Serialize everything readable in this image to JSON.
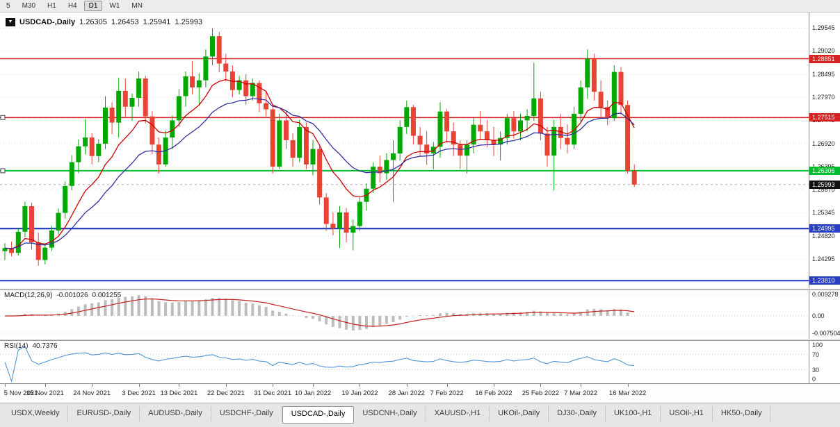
{
  "toolbar": {
    "timeframes": [
      "5",
      "M30",
      "H1",
      "H4",
      "D1",
      "W1",
      "MN"
    ],
    "active": "D1"
  },
  "main_chart": {
    "symbol_label": "USDCAD-,Daily",
    "open": "1.26305",
    "high": "1.26453",
    "low": "1.25941",
    "close": "1.25993"
  },
  "macd_panel": {
    "title": "MACD(12,26,9)",
    "value": "-0.001026",
    "signal_value": "0.001255",
    "axis_labels": [
      "0.009278",
      "0.00",
      "-0.007504"
    ]
  },
  "rsi_panel": {
    "title": "RSI(14)",
    "value": "40.7376",
    "axis_labels": [
      "100",
      "70",
      "30",
      "0"
    ],
    "level_values": [
      100,
      70,
      30,
      0
    ]
  },
  "tabbar": {
    "tabs": [
      "USDX,Weekly",
      "EURUSD-,Daily",
      "AUDUSD-,Daily",
      "USDCHF-,Daily",
      "USDCAD-,Daily",
      "USDCNH-,Daily",
      "XAUUSD-,H1",
      "UKOil-,Daily",
      "DJ30-,Daily",
      "UK100-,H1",
      "USOil-,H1",
      "HK50-,Daily"
    ],
    "active": "USDCAD-,Daily"
  },
  "colors": {
    "up": "#00a800",
    "down": "#e84335",
    "ma_fast": "#cc0000",
    "ma_slow": "#3030a0",
    "macd_hist": "#bdbdbd",
    "macd_signal": "#c41d1d",
    "rsi_line": "#4f94d4",
    "grid": "#d9d9d9"
  },
  "chart_data": {
    "type": "candlestick",
    "symbol": "USDCAD-",
    "period": "Daily",
    "price_range": {
      "max": 1.299,
      "min": 1.2364
    },
    "price_axis_ticks": [
      "1.29545",
      "1.29020",
      "1.28495",
      "1.27970",
      "1.27445",
      "1.26920",
      "1.26395",
      "1.25870",
      "1.25345",
      "1.24820",
      "1.24295",
      "1.23770"
    ],
    "levels": [
      {
        "price": 1.28851,
        "label": "1.28851",
        "color": "#d62222",
        "width": 1.6,
        "handle": false
      },
      {
        "price": 1.27515,
        "label": "1.27515",
        "color": "#d62222",
        "width": 1.6,
        "handle": true
      },
      {
        "price": 1.26306,
        "label": "1.26306",
        "color": "#00bd2f",
        "width": 2.0,
        "handle": true
      },
      {
        "price": 1.24995,
        "label": "1.24995",
        "color": "#2840c0",
        "width": 2.2,
        "handle": false
      },
      {
        "price": 1.2381,
        "label": "1.23810",
        "color": "#2840c0",
        "width": 2.2,
        "handle": false
      }
    ],
    "current_price": {
      "value": 1.25993,
      "label": "1.25993"
    },
    "x_labels": [
      {
        "label": "5 Nov 2021",
        "i": 0
      },
      {
        "label": "15 Nov 2021",
        "i": 6
      },
      {
        "label": "24 Nov 2021",
        "i": 13
      },
      {
        "label": "3 Dec 2021",
        "i": 20
      },
      {
        "label": "13 Dec 2021",
        "i": 26
      },
      {
        "label": "22 Dec 2021",
        "i": 33
      },
      {
        "label": "31 Dec 2021",
        "i": 40
      },
      {
        "label": "10 Jan 2022",
        "i": 46
      },
      {
        "label": "19 Jan 2022",
        "i": 53
      },
      {
        "label": "28 Jan 2022",
        "i": 60
      },
      {
        "label": "7 Feb 2022",
        "i": 66
      },
      {
        "label": "16 Feb 2022",
        "i": 73
      },
      {
        "label": "25 Feb 2022",
        "i": 80
      },
      {
        "label": "7 Mar 2022",
        "i": 86
      },
      {
        "label": "16 Mar 2022",
        "i": 93
      }
    ],
    "moving_averages": [
      {
        "type": "ema",
        "period": 10,
        "color": "#cc0000"
      },
      {
        "type": "ema",
        "period": 20,
        "color": "#3030a0"
      }
    ],
    "macd_params": {
      "fast": 12,
      "slow": 26,
      "signal": 9
    },
    "rsi_period": 14,
    "candles": [
      [
        1.2448,
        1.2466,
        1.2428,
        1.2455
      ],
      [
        1.2455,
        1.247,
        1.2436,
        1.2444
      ],
      [
        1.2444,
        1.25,
        1.2438,
        1.2492
      ],
      [
        1.2492,
        1.256,
        1.248,
        1.255
      ],
      [
        1.255,
        1.2558,
        1.2452,
        1.2468
      ],
      [
        1.2468,
        1.249,
        1.2415,
        1.2428
      ],
      [
        1.2428,
        1.2465,
        1.2418,
        1.2456
      ],
      [
        1.2456,
        1.2505,
        1.2448,
        1.2495
      ],
      [
        1.2495,
        1.2545,
        1.2486,
        1.2535
      ],
      [
        1.2535,
        1.2606,
        1.2522,
        1.2596
      ],
      [
        1.2596,
        1.2666,
        1.2586,
        1.265
      ],
      [
        1.265,
        1.2702,
        1.2625,
        1.2686
      ],
      [
        1.2686,
        1.2748,
        1.2668,
        1.2706
      ],
      [
        1.2706,
        1.2716,
        1.2645,
        1.2664
      ],
      [
        1.2664,
        1.2702,
        1.265,
        1.2692
      ],
      [
        1.2692,
        1.28,
        1.268,
        1.2774
      ],
      [
        1.2774,
        1.2786,
        1.2714,
        1.274
      ],
      [
        1.274,
        1.2842,
        1.2706,
        1.2812
      ],
      [
        1.2812,
        1.284,
        1.2754,
        1.2776
      ],
      [
        1.2776,
        1.2806,
        1.2744,
        1.2796
      ],
      [
        1.2796,
        1.2856,
        1.2776,
        1.284
      ],
      [
        1.284,
        1.2846,
        1.2738,
        1.2754
      ],
      [
        1.2754,
        1.2766,
        1.2668,
        1.269
      ],
      [
        1.269,
        1.2706,
        1.2624,
        1.2645
      ],
      [
        1.2645,
        1.2722,
        1.264,
        1.2706
      ],
      [
        1.2706,
        1.2756,
        1.268,
        1.2745
      ],
      [
        1.2745,
        1.2816,
        1.273,
        1.28
      ],
      [
        1.28,
        1.2856,
        1.2776,
        1.2845
      ],
      [
        1.2845,
        1.288,
        1.2804,
        1.282
      ],
      [
        1.282,
        1.2852,
        1.278,
        1.2836
      ],
      [
        1.2836,
        1.2906,
        1.282,
        1.289
      ],
      [
        1.289,
        1.2954,
        1.287,
        1.2936
      ],
      [
        1.2936,
        1.2946,
        1.2854,
        1.2874
      ],
      [
        1.2874,
        1.2896,
        1.2834,
        1.2856
      ],
      [
        1.2856,
        1.287,
        1.2798,
        1.2814
      ],
      [
        1.2814,
        1.2846,
        1.2804,
        1.2836
      ],
      [
        1.2836,
        1.285,
        1.278,
        1.28
      ],
      [
        1.28,
        1.284,
        1.279,
        1.283
      ],
      [
        1.283,
        1.2836,
        1.2764,
        1.2784
      ],
      [
        1.2784,
        1.281,
        1.2754,
        1.277
      ],
      [
        1.277,
        1.2776,
        1.2624,
        1.264
      ],
      [
        1.264,
        1.276,
        1.2634,
        1.2745
      ],
      [
        1.2745,
        1.2766,
        1.268,
        1.27
      ],
      [
        1.27,
        1.2716,
        1.264,
        1.266
      ],
      [
        1.266,
        1.2746,
        1.265,
        1.273
      ],
      [
        1.273,
        1.274,
        1.2634,
        1.2645
      ],
      [
        1.2645,
        1.27,
        1.262,
        1.268
      ],
      [
        1.268,
        1.2686,
        1.2554,
        1.257
      ],
      [
        1.257,
        1.258,
        1.2494,
        1.251
      ],
      [
        1.251,
        1.2536,
        1.2484,
        1.25
      ],
      [
        1.25,
        1.255,
        1.2455,
        1.2536
      ],
      [
        1.2536,
        1.2546,
        1.2468,
        1.249
      ],
      [
        1.249,
        1.252,
        1.245,
        1.2505
      ],
      [
        1.2505,
        1.257,
        1.2494,
        1.256
      ],
      [
        1.256,
        1.2602,
        1.254,
        1.259
      ],
      [
        1.259,
        1.265,
        1.258,
        1.264
      ],
      [
        1.264,
        1.2665,
        1.2604,
        1.2625
      ],
      [
        1.2625,
        1.267,
        1.261,
        1.2655
      ],
      [
        1.2655,
        1.27,
        1.256,
        1.267
      ],
      [
        1.267,
        1.2745,
        1.2654,
        1.273
      ],
      [
        1.273,
        1.279,
        1.2714,
        1.2775
      ],
      [
        1.2775,
        1.278,
        1.269,
        1.271
      ],
      [
        1.271,
        1.273,
        1.2664,
        1.269
      ],
      [
        1.269,
        1.272,
        1.2644,
        1.267
      ],
      [
        1.267,
        1.2696,
        1.2634,
        1.2685
      ],
      [
        1.2685,
        1.2786,
        1.266,
        1.2765
      ],
      [
        1.2765,
        1.277,
        1.2694,
        1.272
      ],
      [
        1.272,
        1.274,
        1.2664,
        1.269
      ],
      [
        1.269,
        1.27,
        1.2634,
        1.2665
      ],
      [
        1.2665,
        1.27,
        1.2624,
        1.269
      ],
      [
        1.269,
        1.275,
        1.267,
        1.2735
      ],
      [
        1.2735,
        1.2766,
        1.27,
        1.272
      ],
      [
        1.272,
        1.2746,
        1.2684,
        1.27
      ],
      [
        1.27,
        1.273,
        1.2664,
        1.269
      ],
      [
        1.269,
        1.272,
        1.2654,
        1.2705
      ],
      [
        1.2705,
        1.276,
        1.269,
        1.275
      ],
      [
        1.275,
        1.2766,
        1.2704,
        1.272
      ],
      [
        1.272,
        1.276,
        1.27,
        1.2745
      ],
      [
        1.2745,
        1.277,
        1.272,
        1.2755
      ],
      [
        1.2755,
        1.2876,
        1.2744,
        1.2795
      ],
      [
        1.2795,
        1.281,
        1.27,
        1.2715
      ],
      [
        1.2715,
        1.273,
        1.264,
        1.2665
      ],
      [
        1.2665,
        1.2746,
        1.2586,
        1.273
      ],
      [
        1.273,
        1.276,
        1.268,
        1.2705
      ],
      [
        1.2705,
        1.2736,
        1.267,
        1.269
      ],
      [
        1.269,
        1.2776,
        1.268,
        1.276
      ],
      [
        1.276,
        1.2836,
        1.274,
        1.282
      ],
      [
        1.282,
        1.2906,
        1.2794,
        1.2885
      ],
      [
        1.2885,
        1.2896,
        1.279,
        1.281
      ],
      [
        1.281,
        1.2836,
        1.2754,
        1.2775
      ],
      [
        1.2775,
        1.279,
        1.2734,
        1.275
      ],
      [
        1.275,
        1.287,
        1.2744,
        1.2855
      ],
      [
        1.2855,
        1.2866,
        1.2758,
        1.278
      ],
      [
        1.278,
        1.279,
        1.2624,
        1.26305
      ],
      [
        1.26305,
        1.26453,
        1.25941,
        1.25993
      ]
    ]
  }
}
